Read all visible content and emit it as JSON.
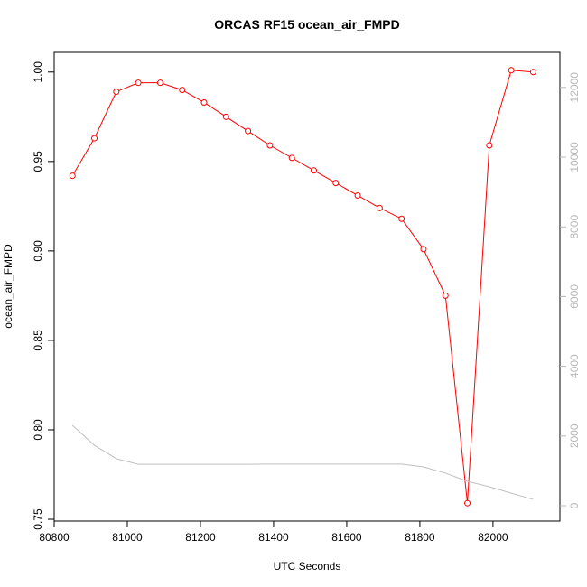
{
  "chart_data": {
    "type": "line",
    "title": "ORCAS RF15 ocean_air_FMPD",
    "x_label": "UTC Seconds",
    "y_label": "ocean_air_FMPD",
    "x": [
      80850,
      80910,
      80970,
      81030,
      81090,
      81150,
      81210,
      81270,
      81330,
      81390,
      81450,
      81510,
      81570,
      81630,
      81690,
      81750,
      81810,
      81870,
      81930,
      81990,
      82050,
      82110
    ],
    "series": [
      {
        "color": "#ff0000",
        "markers": true,
        "values": [
          0.942,
          0.963,
          0.989,
          0.994,
          0.994,
          0.99,
          0.983,
          0.975,
          0.967,
          0.959,
          0.952,
          0.945,
          0.938,
          0.931,
          0.924,
          0.918,
          0.901,
          0.875,
          0.759,
          0.959,
          1.001,
          1.0
        ]
      },
      {
        "color": "#c0c0c0",
        "markers": false,
        "axis": "y2",
        "values": [
          2305,
          1735,
          1350,
          1190,
          1190,
          1190,
          1190,
          1190,
          1190,
          1195,
          1195,
          1195,
          1195,
          1195,
          1195,
          1195,
          1115,
          935,
          700,
          545,
          360,
          180
        ]
      }
    ],
    "xlim": [
      80800,
      82183
    ],
    "xticks": [
      80800,
      81000,
      81200,
      81400,
      81600,
      81800,
      82000
    ],
    "ylim": [
      0.749,
      1.011
    ],
    "yticks": [
      0.75,
      {
        "value": 0.8,
        "label": "0.80"
      },
      0.85,
      {
        "value": 0.9,
        "label": "0.90"
      },
      0.95,
      {
        "value": 1.0,
        "label": "1.00"
      }
    ],
    "y2lim": [
      -440,
      13005
    ],
    "y2ticks": [
      0,
      2000,
      4000,
      6000,
      8000,
      10000,
      12000
    ]
  }
}
